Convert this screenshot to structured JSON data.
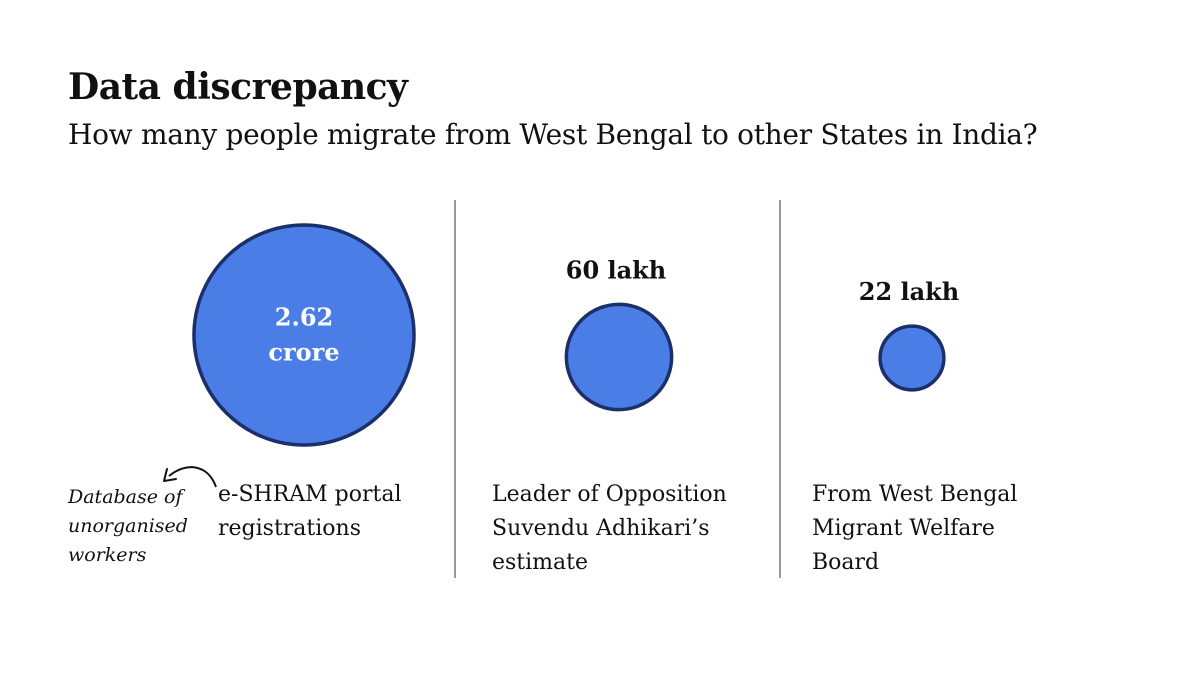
{
  "title": "Data discrepancy",
  "subtitle": "How many people migrate from West Bengal to other States in India?",
  "colors": {
    "circle_fill": "#4a7de6",
    "circle_stroke": "#1b2f6b",
    "divider": "#555555",
    "text": "#111111"
  },
  "chart_data": {
    "type": "bubble",
    "title": "Data discrepancy",
    "subtitle": "How many people migrate from West Bengal to other States in India?",
    "items": [
      {
        "value_lakh": 262,
        "label": "2.62 crore",
        "label_lines": [
          "2.62",
          "crore"
        ],
        "label_inside": true,
        "caption_lines": [
          "e-SHRAM portal",
          "registrations"
        ]
      },
      {
        "value_lakh": 60,
        "label": "60 lakh",
        "label_lines": [
          "60 lakh"
        ],
        "label_inside": false,
        "caption_lines": [
          "Leader of Opposition",
          "Suvendu Adhikari’s",
          "estimate"
        ]
      },
      {
        "value_lakh": 22,
        "label": "22 lakh",
        "label_lines": [
          "22 lakh"
        ],
        "label_inside": false,
        "caption_lines": [
          "From West Bengal",
          "Migrant Welfare",
          "Board"
        ]
      }
    ],
    "annotation": {
      "lines": [
        "Database of",
        "unorganised",
        "workers"
      ],
      "points_to": "e-SHRAM portal registrations"
    }
  }
}
